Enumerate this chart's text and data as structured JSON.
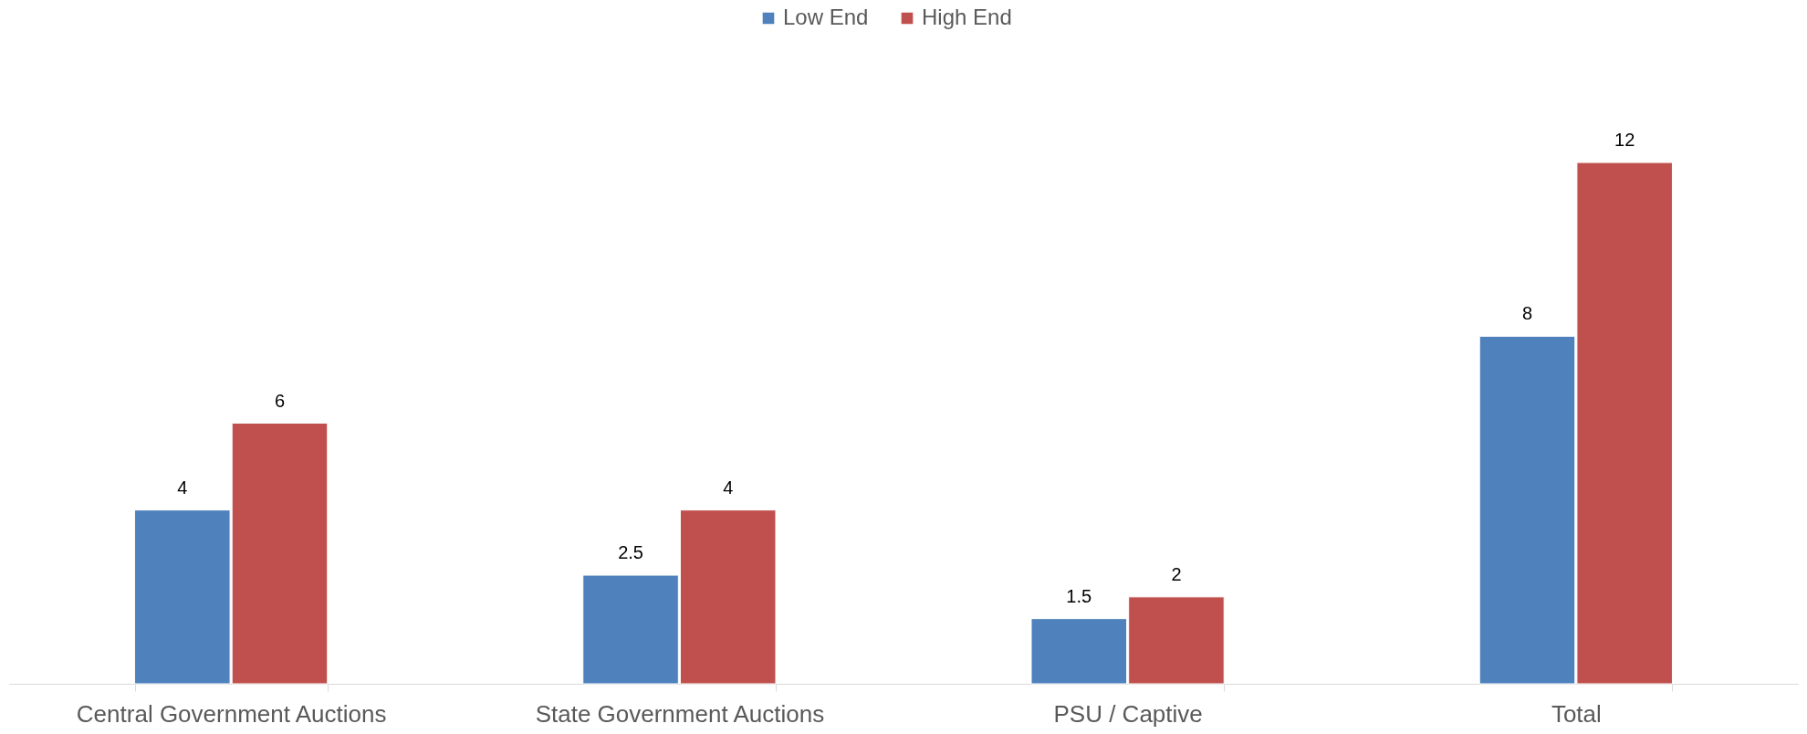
{
  "chart_data": {
    "type": "bar",
    "categories": [
      "Central Government Auctions",
      "State Government Auctions",
      "PSU / Captive",
      "Total"
    ],
    "series": [
      {
        "name": "Low End",
        "color": "#4f81bd",
        "values": [
          4,
          2.5,
          1.5,
          8
        ]
      },
      {
        "name": "High End",
        "color": "#c0504d",
        "values": [
          6,
          4,
          2,
          12
        ]
      }
    ],
    "data_labels": true,
    "legend": "top"
  }
}
